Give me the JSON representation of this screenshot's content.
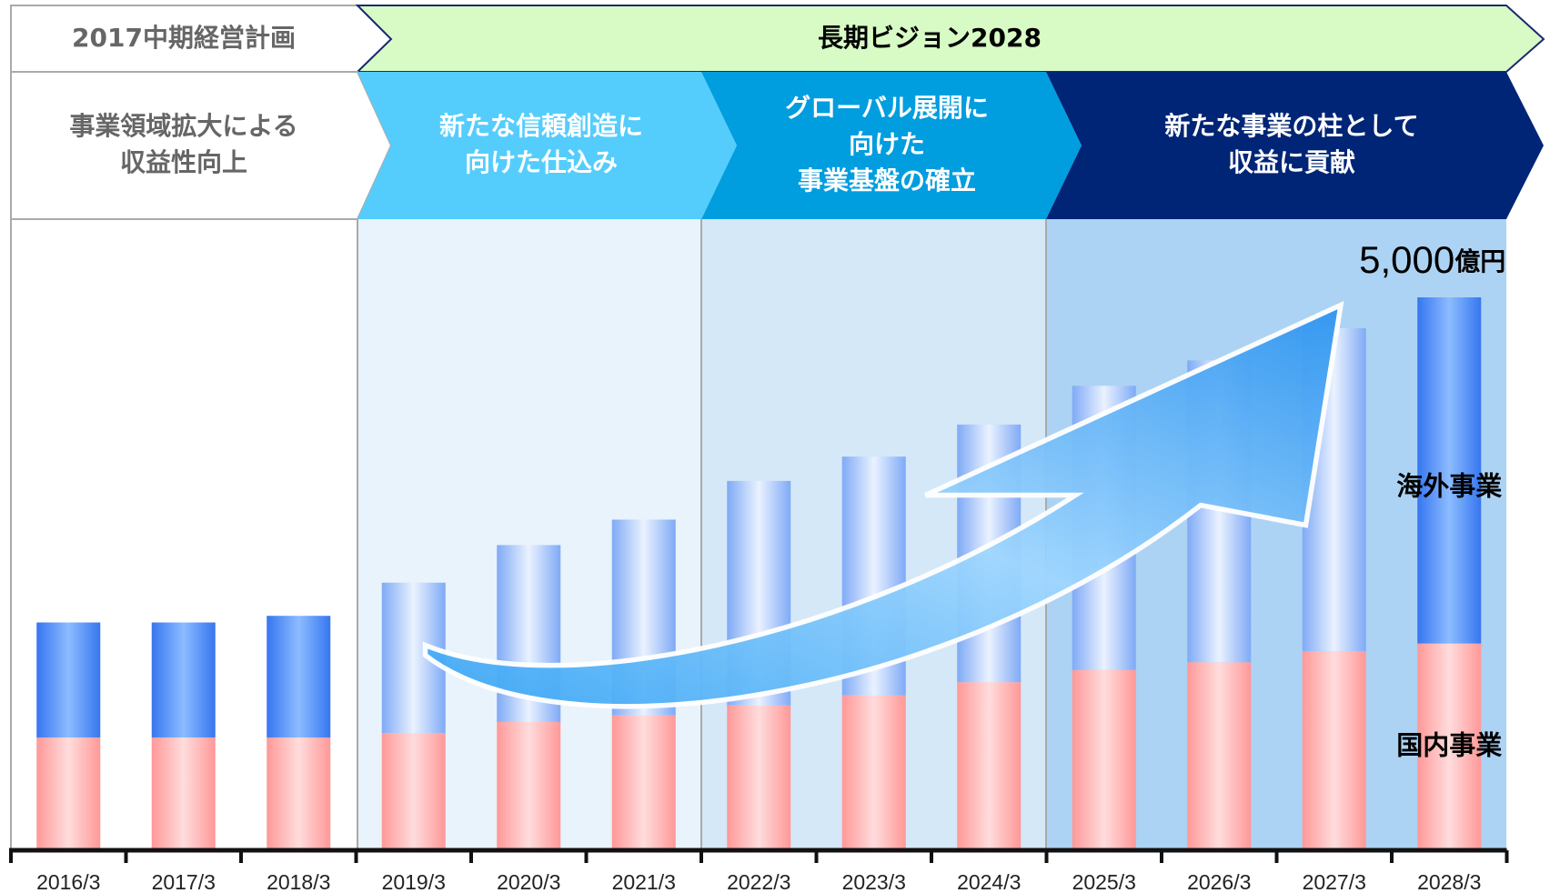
{
  "chart_data": {
    "type": "stacked_bar",
    "plan_label": "2017中期経営計画",
    "vision_label": "長期ビジョン2028",
    "phases": [
      {
        "lines": [
          "事業領域拡大による",
          "収益性向上"
        ]
      },
      {
        "lines": [
          "新たな信頼創造に",
          "向けた仕込み"
        ]
      },
      {
        "lines": [
          "グローバル展開に",
          "向けた",
          "事業基盤の確立"
        ]
      },
      {
        "lines": [
          "新たな事業の柱として",
          "収益に貢献"
        ]
      }
    ],
    "categories": [
      "2016/3",
      "2017/3",
      "2018/3",
      "2019/3",
      "2020/3",
      "2021/3",
      "2022/3",
      "2023/3",
      "2024/3",
      "2025/3",
      "2026/3",
      "2027/3",
      "2028/3"
    ],
    "series": [
      {
        "name": "国内事業",
        "color": "#ff9e9e",
        "values": [
          1020,
          1020,
          1020,
          1060,
          1160,
          1220,
          1310,
          1400,
          1520,
          1630,
          1700,
          1800,
          1870
        ]
      },
      {
        "name": "海外事業",
        "color": "#3f82f5",
        "values": [
          1040,
          1040,
          1100,
          1360,
          1600,
          1770,
          2030,
          2160,
          2330,
          2570,
          2730,
          2920,
          3130
        ]
      }
    ],
    "total": {
      "value": 5000,
      "label": "5,000"
    },
    "unit": "億円"
  }
}
